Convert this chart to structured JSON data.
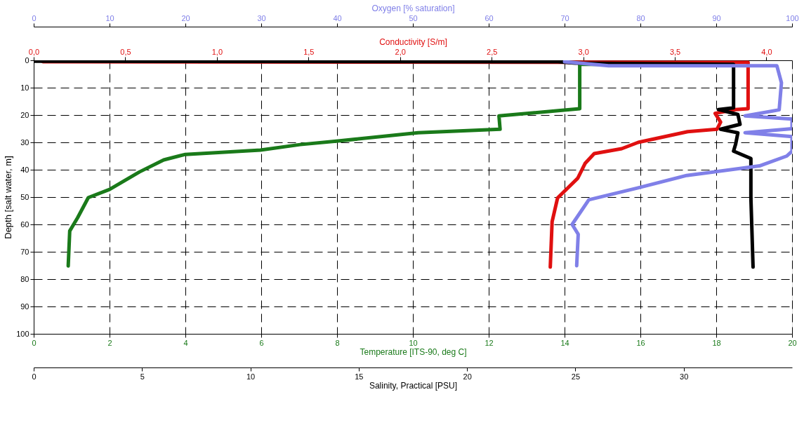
{
  "chart_data": [
    {
      "type": "line",
      "ylabel": "Depth [salt water, m]",
      "ylim": [
        100,
        0
      ],
      "yticks": [
        0,
        10,
        20,
        30,
        40,
        50,
        60,
        70,
        80,
        90,
        100
      ],
      "grid": true,
      "xlabel": "Temperature [ITS-90, deg C]",
      "xlim": [
        0,
        20
      ],
      "xticks": [
        0,
        2,
        4,
        6,
        8,
        10,
        12,
        14,
        16,
        18,
        20
      ],
      "x2label": "Conductivity [S/m]",
      "x2lim": [
        0,
        4.14
      ],
      "x2ticks": [
        {
          "value": 0,
          "label": "0,0"
        },
        {
          "value": 0.5,
          "label": "0,5"
        },
        {
          "value": 1,
          "label": "1,0"
        },
        {
          "value": 1.5,
          "label": "1,5"
        },
        {
          "value": 2,
          "label": "2,0"
        },
        {
          "value": 2.5,
          "label": "2,5"
        },
        {
          "value": 3,
          "label": "3,0"
        },
        {
          "value": 3.5,
          "label": "3,5"
        },
        {
          "value": 4,
          "label": "4,0"
        }
      ],
      "series": [
        {
          "color": "#1a7a1a",
          "x": [
            15.1,
            14.4,
            14.4,
            12.27,
            12.3,
            10.14,
            8.03,
            7.03,
            5.98,
            4.0,
            3.43,
            2.79,
            2.0,
            1.44,
            1.16,
            0.95,
            0.91
          ],
          "values": [
            1.5,
            1.5,
            17.7,
            20.3,
            25.2,
            26.5,
            29.5,
            30.8,
            32.8,
            34.4,
            36.4,
            40.8,
            47.2,
            50.2,
            57.5,
            62.4,
            75.2
          ]
        },
        {
          "color": "#e01010",
          "axis": "x2",
          "x": [
            0.05,
            3.9,
            3.9,
            3.9,
            3.83,
            3.72,
            3.75,
            3.73,
            3.57,
            3.3,
            3.21,
            3.06,
            3.01,
            2.97,
            2.86,
            2.83,
            2.82
          ],
          "values": [
            0.5,
            0.8,
            2.8,
            17.7,
            18,
            19.4,
            22.6,
            25.2,
            26.1,
            30.0,
            32.3,
            34.1,
            37.7,
            43.1,
            50.3,
            59.0,
            75.6
          ]
        }
      ]
    },
    {
      "type": "line",
      "ylim": [
        100,
        0
      ],
      "yticks": [
        0,
        10,
        20,
        30,
        40,
        50,
        60,
        70,
        80,
        90,
        100
      ],
      "tick_labels": "x",
      "xlabel": "Salinity, Practical [PSU]",
      "xlim": [
        0,
        35
      ],
      "xticks": [
        0,
        5,
        10,
        15,
        20,
        25,
        30
      ],
      "x2label": "Oxygen [% saturation]",
      "x2lim": [
        0,
        100
      ],
      "x2ticks": [
        0,
        10,
        20,
        30,
        40,
        50,
        60,
        70,
        80,
        90,
        100
      ],
      "series": [
        {
          "color": "#000000",
          "x": [
            0,
            24.2,
            25.0,
            32.3,
            32.3,
            31.6,
            32.5,
            32.6,
            31.7,
            32.5,
            32.4,
            32.3,
            33.1,
            33.1,
            33.2
          ],
          "values": [
            0.3,
            0.5,
            1.0,
            1.5,
            17.4,
            18,
            19.8,
            23.4,
            25.2,
            26.5,
            30.5,
            33.2,
            35.9,
            50.3,
            75.6
          ]
        },
        {
          "color": "#8080e8",
          "axis": "x2",
          "x": [
            70.0,
            75.8,
            95.7,
            98.0,
            98.6,
            98.3,
            93.8,
            100,
            100,
            93.8,
            100,
            100,
            99.3,
            95.7,
            86.1,
            79.6,
            73.2,
            71.0,
            71.8,
            71.6
          ],
          "values": [
            0.5,
            2.0,
            2.0,
            2.0,
            8.2,
            18.1,
            20.3,
            21.5,
            25,
            26.5,
            27.9,
            33.2,
            35.0,
            38.6,
            42.1,
            46.7,
            51.0,
            60.0,
            63.6,
            75.1
          ]
        }
      ]
    }
  ]
}
